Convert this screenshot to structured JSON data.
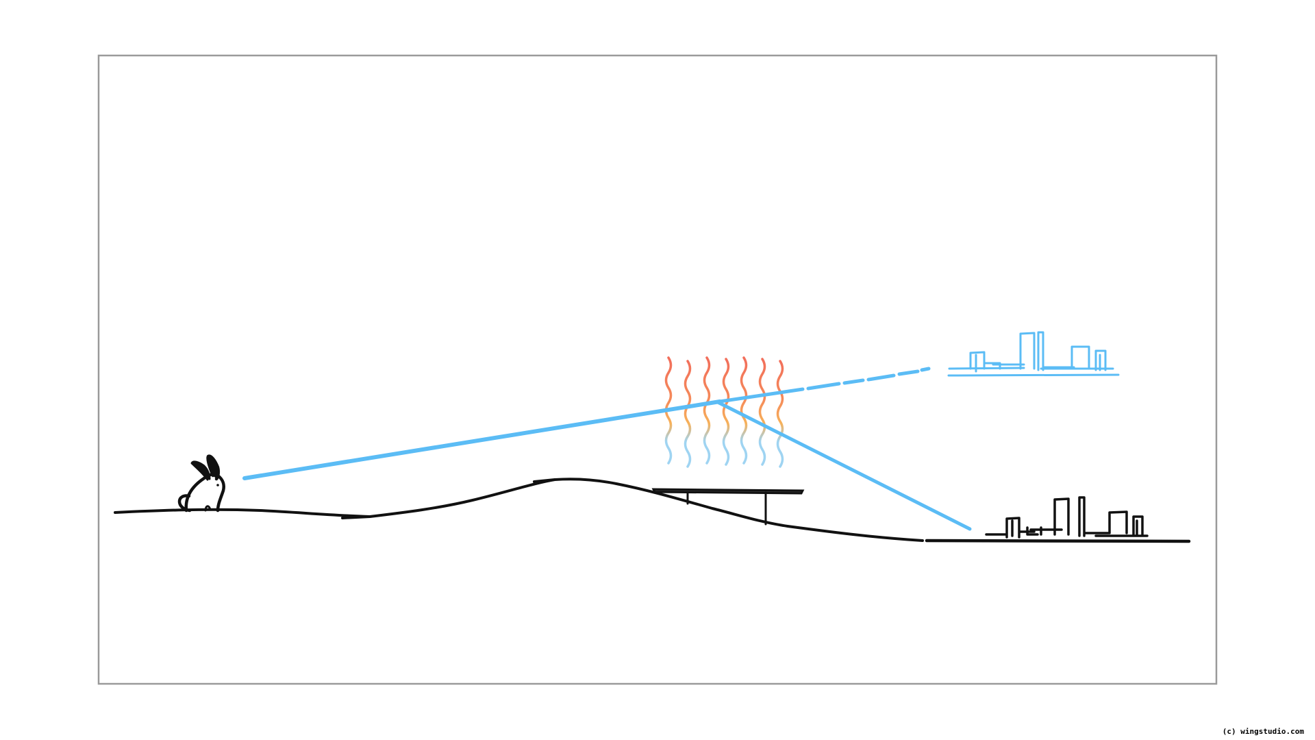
{
  "credit": "(c) wingstudio.com",
  "colors": {
    "frame": "#9a9a9a",
    "ink": "#111111",
    "sightline": "#5bbcf5",
    "heat_hot": "#f26d5b",
    "heat_warm": "#f7b15a",
    "heat_cool": "#9fd4f2"
  },
  "elements": [
    "rabbit",
    "hill-ground",
    "hot-road-surface",
    "heat-shimmer",
    "line-of-sight",
    "refracted-ray",
    "city-real",
    "city-mirage-image"
  ]
}
